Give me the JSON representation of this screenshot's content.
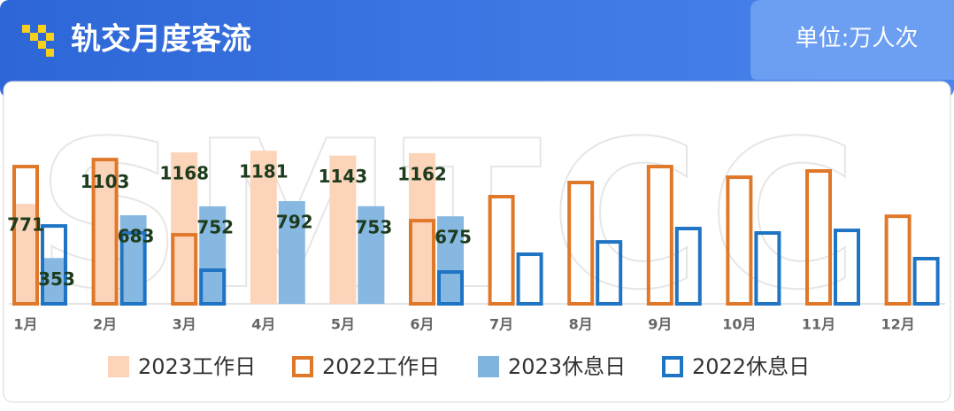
{
  "header": {
    "title": "轨交月度客流",
    "unit": "单位:万人次"
  },
  "chart_data": {
    "type": "bar",
    "watermark": "SMTCC",
    "categories": [
      "1月",
      "2月",
      "3月",
      "4月",
      "5月",
      "6月",
      "7月",
      "8月",
      "9月",
      "10月",
      "11月",
      "12月"
    ],
    "ylim": [
      0,
      1250
    ],
    "series": [
      {
        "name": "2023工作日",
        "color": "#fcd4ba",
        "style": "filled",
        "show_labels": true,
        "group": "work",
        "values": [
          771,
          1103,
          1168,
          1181,
          1143,
          1162,
          null,
          null,
          null,
          null,
          null,
          null
        ]
      },
      {
        "name": "2022工作日",
        "color": "#e0782a",
        "style": "outline",
        "show_labels": false,
        "group": "work",
        "values": [
          1072,
          1126,
          546,
          null,
          null,
          655,
          840,
          949,
          1072,
          990,
          1038,
          689
        ]
      },
      {
        "name": "2023休息日",
        "color": "#7fb4df",
        "style": "filled",
        "show_labels": true,
        "group": "rest",
        "values": [
          353,
          683,
          752,
          792,
          753,
          675,
          null,
          null,
          null,
          null,
          null,
          null
        ]
      },
      {
        "name": "2022休息日",
        "color": "#1f74c4",
        "style": "outline",
        "show_labels": false,
        "group": "rest",
        "values": [
          614,
          560,
          273,
          null,
          null,
          259,
          396,
          491,
          594,
          560,
          580,
          362
        ]
      }
    ]
  }
}
